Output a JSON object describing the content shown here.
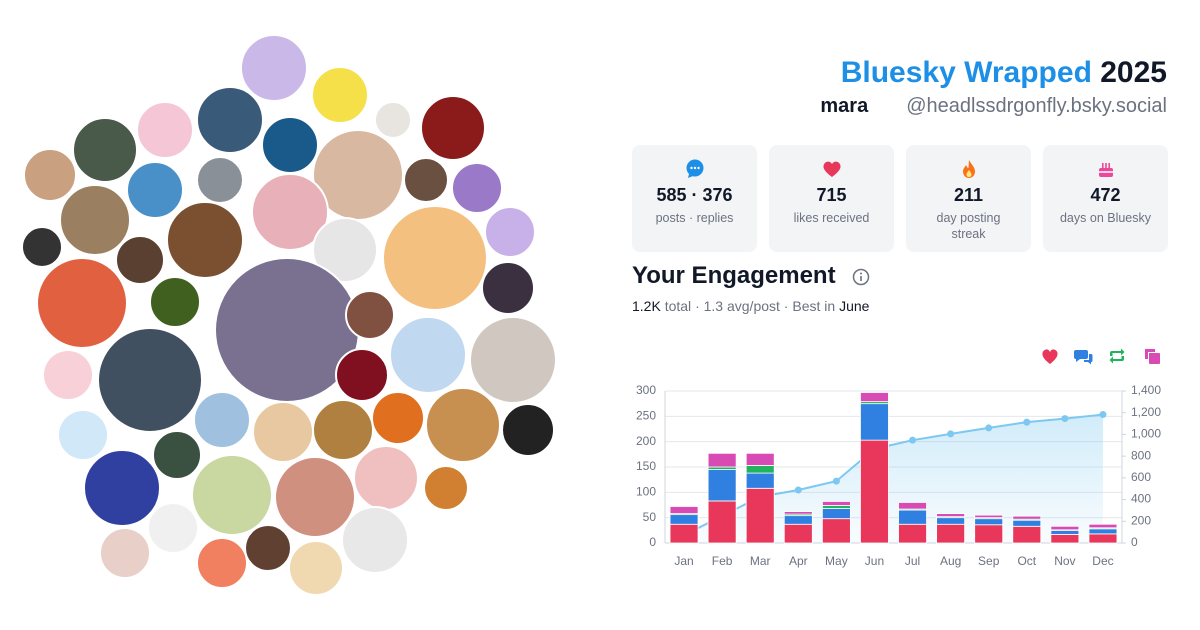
{
  "header": {
    "brand": "Bluesky Wrapped",
    "year": "2025",
    "display_name": "mara",
    "handle": "@headlssdrgonfly.bsky.social"
  },
  "stats": [
    {
      "value": "585 · 376",
      "label": "posts · replies"
    },
    {
      "value": "715",
      "label": "likes received"
    },
    {
      "value": "211",
      "label": "day posting streak"
    },
    {
      "value": "472",
      "label": "days on Bluesky"
    }
  ],
  "engagement": {
    "title": "Your Engagement",
    "total": "1.2K",
    "total_label": "total",
    "separator": "·",
    "average": "1.3 avg/post",
    "best_label": "Best in",
    "best_month": "June"
  },
  "chart_data": {
    "type": "bar",
    "stacked": true,
    "grid": true,
    "categories": [
      "Jan",
      "Feb",
      "Mar",
      "Apr",
      "May",
      "Jun",
      "Jul",
      "Aug",
      "Sep",
      "Oct",
      "Nov",
      "Dec"
    ],
    "series": [
      {
        "color": "#e8375a",
        "values": [
          37,
          83,
          108,
          37,
          48,
          203,
          37,
          37,
          36,
          33,
          17,
          18
        ]
      },
      {
        "color": "#2f80e0",
        "values": [
          19,
          62,
          30,
          17,
          20,
          72,
          28,
          13,
          12,
          12,
          8,
          10
        ]
      },
      {
        "color": "#22b35e",
        "values": [
          2,
          5,
          15,
          3,
          6,
          4,
          2,
          2,
          2,
          2,
          1,
          2
        ]
      },
      {
        "color": "#d84bb5",
        "values": [
          14,
          27,
          24,
          5,
          8,
          18,
          13,
          6,
          5,
          6,
          7,
          7
        ]
      },
      {
        "type": "line",
        "axis": "y2",
        "color": "#7cc8f0",
        "values": [
          72,
          249,
          426,
          488,
          570,
          867,
          947,
          1005,
          1060,
          1113,
          1146,
          1183
        ]
      }
    ],
    "ylim": [
      0,
      300
    ],
    "yticks": [
      0,
      50,
      100,
      150,
      200,
      250,
      300
    ],
    "y2lim": [
      0,
      1400
    ],
    "y2ticks": [
      0,
      200,
      400,
      600,
      800,
      {
        "value": 1000,
        "label": "1,000"
      },
      {
        "value": 1200,
        "label": "1,200"
      },
      {
        "value": 1400,
        "label": "1,400"
      }
    ]
  }
}
